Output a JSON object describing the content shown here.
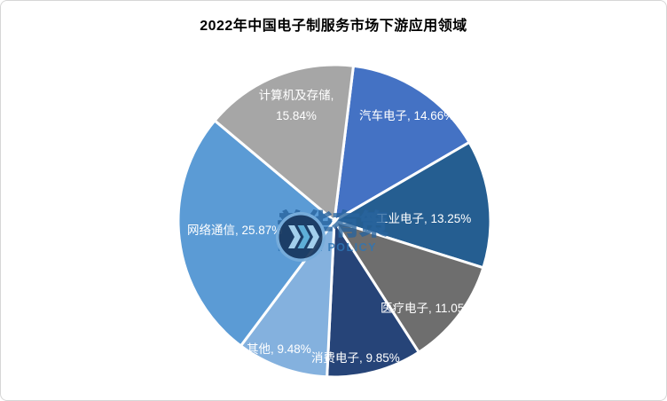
{
  "title": "2022年中国电子制服务市场下游应用领域",
  "chart_data": {
    "type": "pie",
    "title": "2022年中国电子制服务市场下游应用领域",
    "start_angle_deg": 7,
    "rotation": "clockwise-from-12-oclock",
    "legend_position": "none",
    "data_labels": "inside, white, format: {label}, {value}%",
    "slices": [
      {
        "label": "汽车电子",
        "value": 14.66,
        "color": "#4472C4"
      },
      {
        "label": "工业电子",
        "value": 13.25,
        "color": "#255E91"
      },
      {
        "label": "医疗电子",
        "value": 11.05,
        "color": "#6E6E6E"
      },
      {
        "label": "消费电子",
        "value": 9.85,
        "color": "#264478"
      },
      {
        "label": "其他",
        "value": 9.48,
        "color": "#84B1DE"
      },
      {
        "label": "网络通信",
        "value": 25.87,
        "color": "#5B9BD5"
      },
      {
        "label": "计算机及存储",
        "value": 15.84,
        "color": "#A6A6A6"
      }
    ],
    "slice_border_color": "#FFFFFF",
    "label_color": "#FFFFFF"
  },
  "watermark": {
    "icon": "puhua-chevrons-logo-icon",
    "cn": "普华有策",
    "en": "PUHUA POLICY",
    "brand_color": "#2E75B6",
    "logo_outer_color": "#79AEDC",
    "logo_inner_color": "#17375E",
    "logo_chevron_colors": [
      "#A9D4EE",
      "#5FB0D8",
      "#A9D4EE"
    ]
  }
}
